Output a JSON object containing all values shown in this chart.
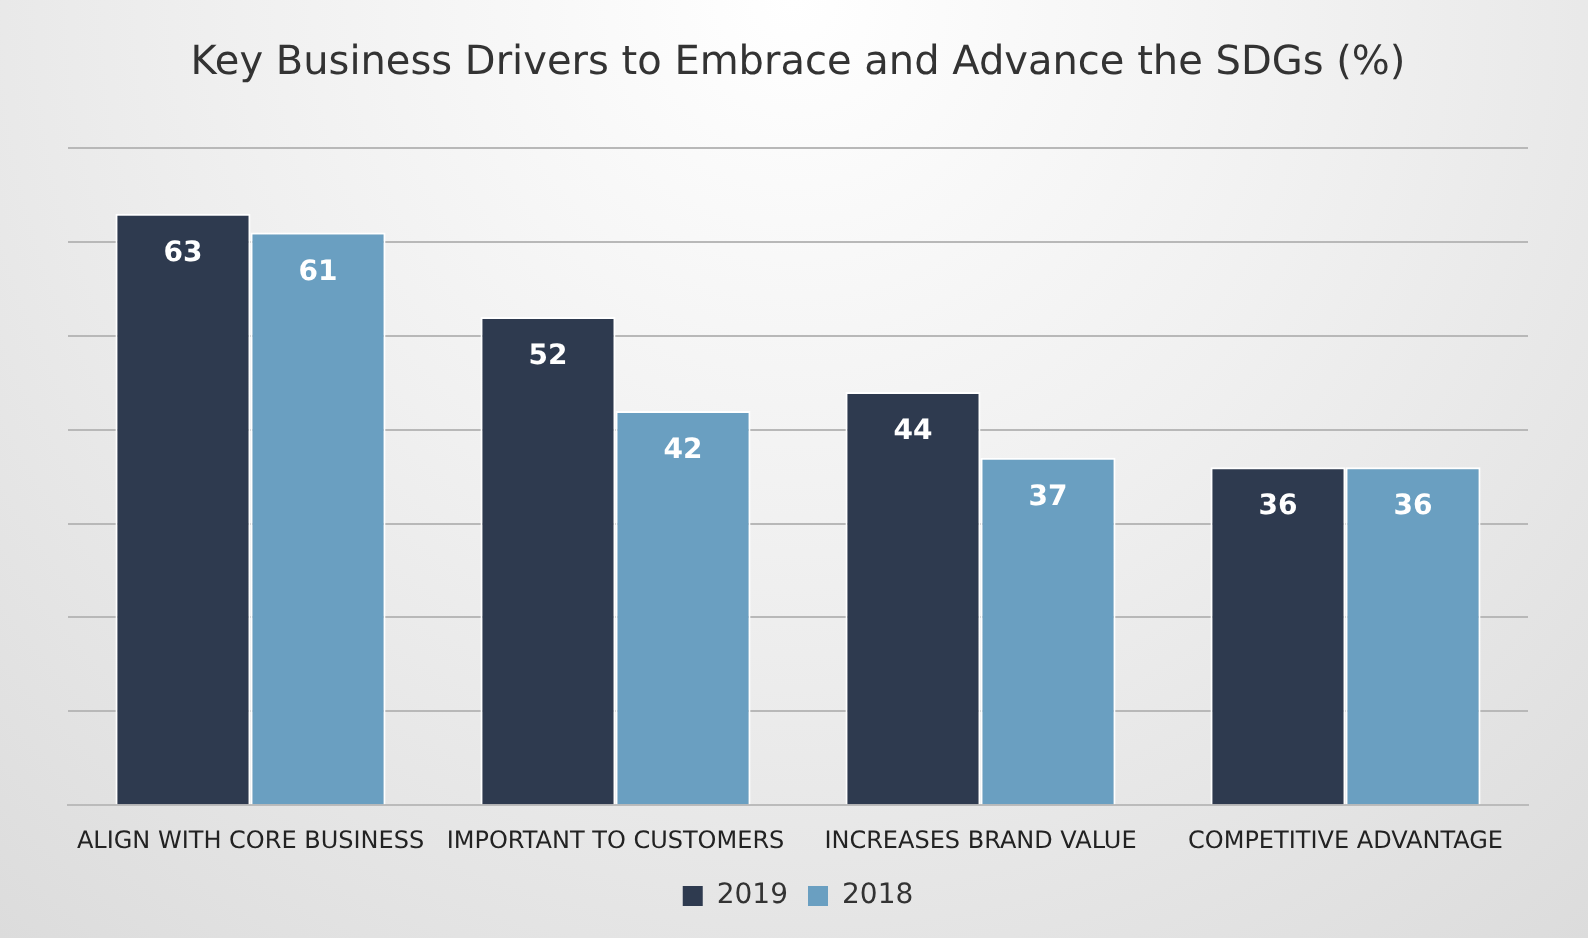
{
  "chart_data": {
    "type": "bar",
    "title": "Key Business Drivers to Embrace and Advance the SDGs (%)",
    "categories": [
      "ALIGN WITH CORE BUSINESS",
      "IMPORTANT TO CUSTOMERS",
      "INCREASES BRAND VALUE",
      "COMPETITIVE ADVANTAGE"
    ],
    "series": [
      {
        "name": "2019",
        "color": "#2e3a4f",
        "values": [
          63,
          52,
          44,
          36
        ]
      },
      {
        "name": "2018",
        "color": "#6a9fc1",
        "values": [
          61,
          42,
          37,
          36
        ]
      }
    ],
    "ylim": [
      0,
      70
    ],
    "yticks": [
      {
        "value": 0,
        "label": null
      },
      {
        "value": 10,
        "label": null
      },
      {
        "value": 20,
        "label": null
      },
      {
        "value": 30,
        "label": null
      },
      {
        "value": 40,
        "label": null
      },
      {
        "value": 50,
        "label": null
      },
      {
        "value": 60,
        "label": null
      },
      {
        "value": 70,
        "label": null
      }
    ],
    "tick_labels": "x",
    "grid": "y",
    "legend": "bottom",
    "data_labels": true
  }
}
